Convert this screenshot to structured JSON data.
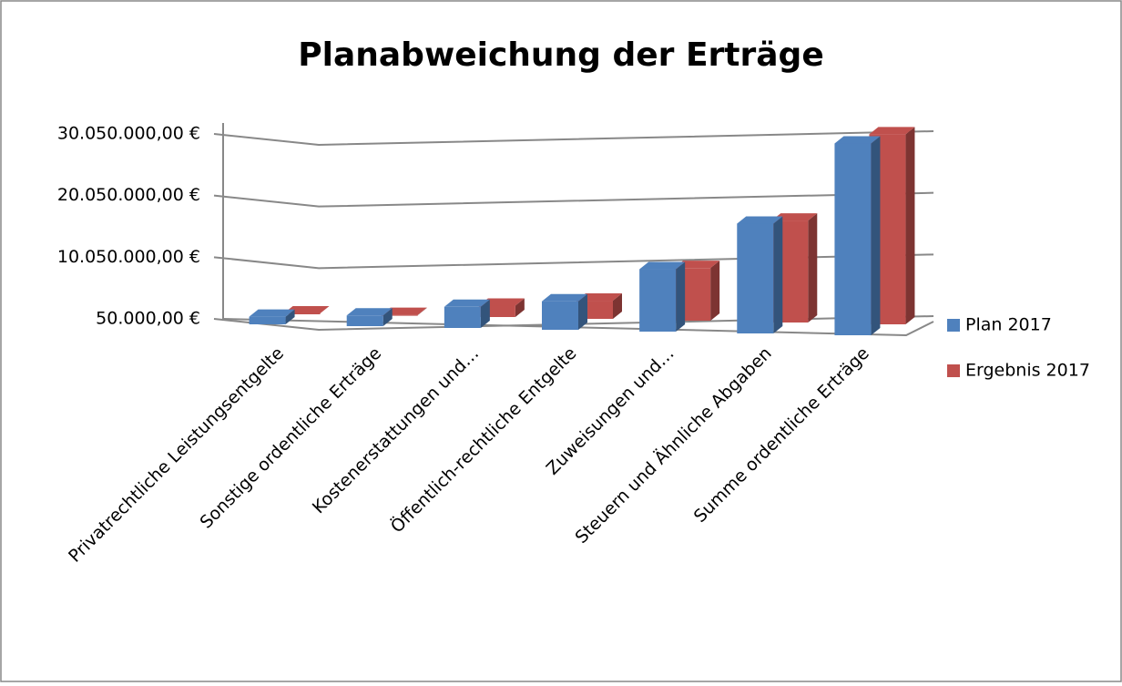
{
  "chart_data": {
    "type": "bar",
    "title": "Planabweichung der Erträge",
    "categories": [
      "Privatrechtliche Leistungsentgelte",
      "Sonstige ordentliche Erträge",
      "Kostenerstattungen und…",
      "Öffentlich-rechtliche Entgelte",
      "Zuweisungen und…",
      "Steuern und Ähnliche Abgaben",
      "Summe ordentliche Erträge"
    ],
    "series": [
      {
        "name": "Plan 2017",
        "color": "#4f81bd",
        "values": [
          400000,
          600000,
          2000000,
          2900000,
          8100000,
          15500000,
          28500000
        ]
      },
      {
        "name": "Ergebnis 2017",
        "color": "#c0504d",
        "values": [
          500000,
          700000,
          2200000,
          3000000,
          8300000,
          16000000,
          30000000
        ]
      }
    ],
    "ylim": [
      50000,
      30050000
    ],
    "yticks": [
      {
        "value": 50000,
        "label": "50.000,00 €"
      },
      {
        "value": 10050000,
        "label": "10.050.000,00 €"
      },
      {
        "value": 20050000,
        "label": "20.050.000,00 €"
      },
      {
        "value": 30050000,
        "label": "30.050.000,00 €"
      }
    ],
    "grid": true,
    "legend": "right"
  }
}
